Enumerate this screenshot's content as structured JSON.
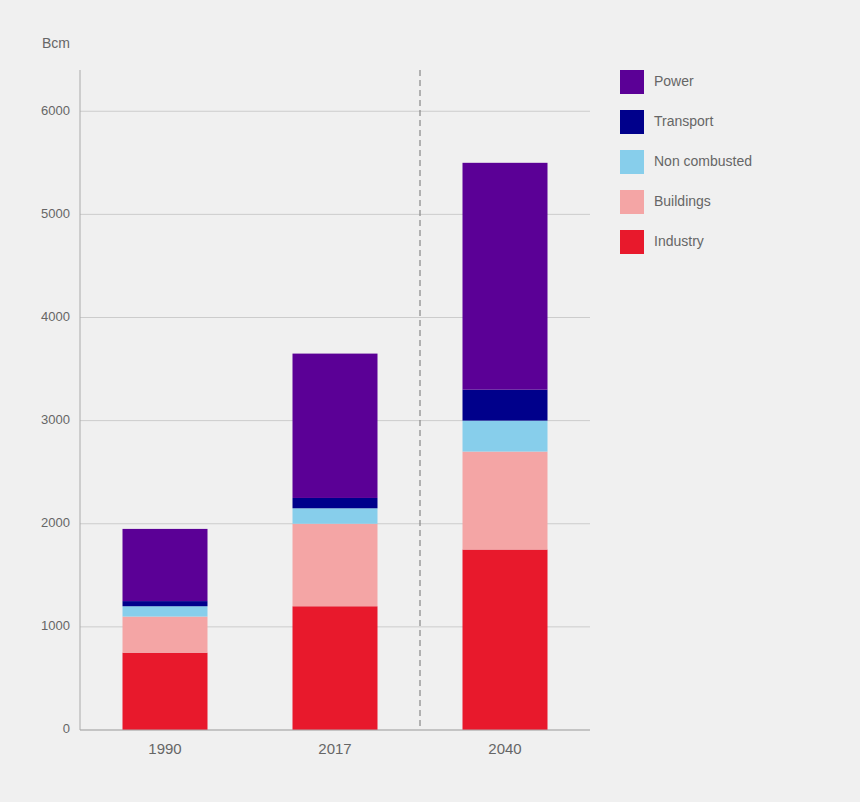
{
  "chart_data": {
    "type": "bar",
    "stacked": true,
    "ylabel": "Bcm",
    "categories": [
      "1990",
      "2017",
      "2040"
    ],
    "series": [
      {
        "name": "Industry",
        "color": "#e8192c",
        "values": [
          750,
          1200,
          1750
        ]
      },
      {
        "name": "Buildings",
        "color": "#f4a5a5",
        "values": [
          350,
          800,
          950
        ]
      },
      {
        "name": "Non combusted",
        "color": "#87ceeb",
        "values": [
          100,
          150,
          300
        ]
      },
      {
        "name": "Transport",
        "color": "#00008b",
        "values": [
          50,
          100,
          300
        ]
      },
      {
        "name": "Power",
        "color": "#5b0096",
        "values": [
          700,
          1400,
          2200
        ]
      }
    ],
    "ylim": [
      0,
      6400
    ],
    "yticks": [
      0,
      1000,
      2000,
      3000,
      4000,
      5000,
      6000
    ],
    "grid": true,
    "legend": "right"
  }
}
